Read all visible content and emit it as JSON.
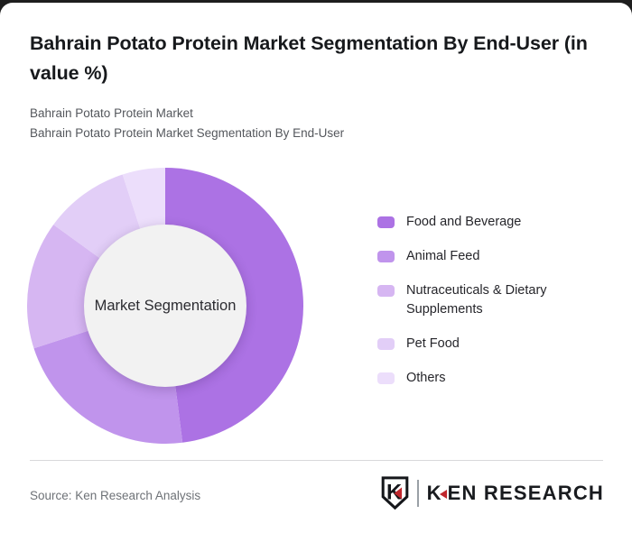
{
  "page": {
    "background": "#1e1e1e",
    "card_background": "#ffffff"
  },
  "header": {
    "title": "Bahrain Potato Protein Market Segmentation By End-User (in value %)",
    "subtitle_line1": "Bahrain Potato Protein Market",
    "subtitle_line2": "Bahrain Potato Protein Market Segmentation By End-User"
  },
  "chart_data": {
    "type": "pie",
    "variant": "donut",
    "title": "Bahrain Potato Protein Market Segmentation By End-User (in value %)",
    "center_label": "Market Segmentation",
    "hole_color": "#f2f2f2",
    "legend_position": "right",
    "start_angle_deg": 0,
    "direction": "clockwise",
    "segments": [
      {
        "label": "Food and Beverage",
        "value": 48,
        "color": "#ac72e4"
      },
      {
        "label": "Animal Feed",
        "value": 22,
        "color": "#c094ec"
      },
      {
        "label": "Nutraceuticals & Dietary Supplements",
        "value": 15,
        "color": "#d6b6f2"
      },
      {
        "label": "Pet Food",
        "value": 10,
        "color": "#e2cef7"
      },
      {
        "label": "Others",
        "value": 5,
        "color": "#ecdefb"
      }
    ]
  },
  "footer": {
    "source_text": "Source: Ken Research Analysis",
    "logo": {
      "wordmark": "KEN RESEARCH",
      "monogram": "K",
      "accent_color": "#c0272d"
    }
  }
}
